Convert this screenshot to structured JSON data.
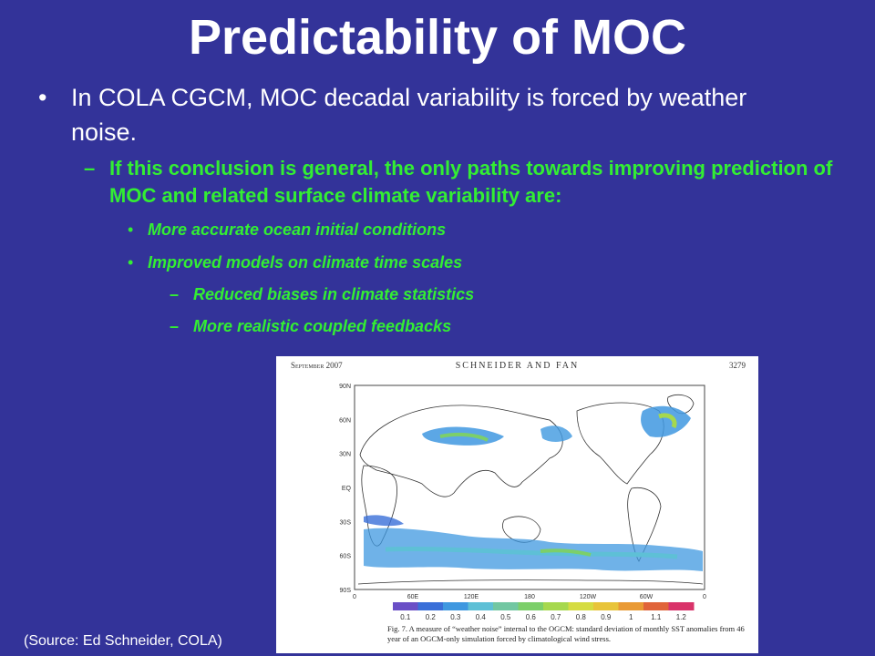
{
  "slide": {
    "title": "Predictability of MOC",
    "bullet_1": "In COLA CGCM, MOC decadal variability is forced by weather noise.",
    "bullet_1_marker": "•",
    "sub_bullet": "If this conclusion is general, the only paths towards improving prediction of MOC and related surface climate variability are:",
    "sub_bullet_marker": "–",
    "items": [
      "More accurate ocean initial conditions",
      "Improved models on climate time scales"
    ],
    "item_marker": "•",
    "sub_items": [
      "Reduced biases in climate statistics",
      "More realistic coupled feedbacks"
    ],
    "sub_item_marker": "–",
    "source": "(Source: Ed Schneider, COLA)"
  },
  "figure": {
    "header_left": "September 2007",
    "header_center": "SCHNEIDER AND FAN",
    "header_right": "3279",
    "lat_labels": [
      "90N",
      "60N",
      "30N",
      "EQ",
      "30S",
      "60S",
      "90S"
    ],
    "lon_labels": [
      "0",
      "60E",
      "120E",
      "180",
      "120W",
      "60W",
      "0"
    ],
    "colorbar_labels": [
      "0.1",
      "0.2",
      "0.3",
      "0.4",
      "0.5",
      "0.6",
      "0.7",
      "0.8",
      "0.9",
      "1",
      "1.1",
      "1.2"
    ],
    "colorbar_colors": [
      "#6a4fc6",
      "#3a6fd8",
      "#3f98e0",
      "#5ec0d6",
      "#72c7a2",
      "#7ccf6a",
      "#a6d84e",
      "#d5dc42",
      "#e8c43a",
      "#e99a35",
      "#e0643a",
      "#d9336a"
    ],
    "caption": "Fig. 7. A measure of “weather noise” internal to the OGCM: standard deviation of monthly SST anomalies from 46 year of an OGCM-only simulation forced by climatological wind stress."
  }
}
